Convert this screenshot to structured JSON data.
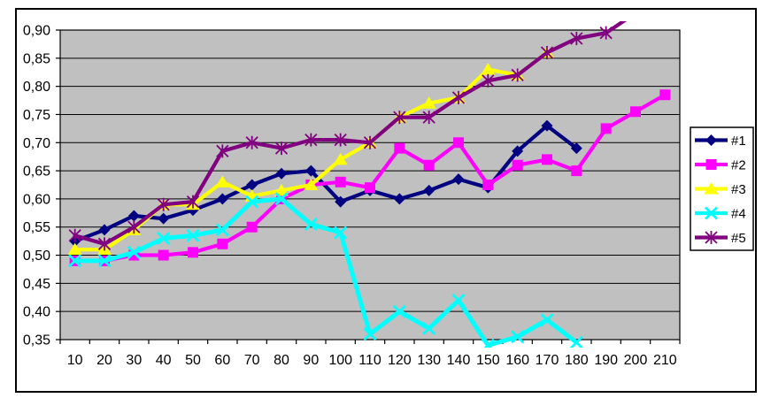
{
  "window": {
    "background_color": "#FFFFFF",
    "frame_border_color": "#000000"
  },
  "chart_data": {
    "type": "line",
    "title": "",
    "xlabel": "",
    "ylabel": "",
    "plot_background_color": "#C0C0C0",
    "grid": true,
    "gridline_color": "#000000",
    "decimal_separator": ",",
    "ylim": [
      0.35,
      0.9
    ],
    "y_tick_step": 0.05,
    "y_tick_labels": [
      "0,35",
      "0,40",
      "0,45",
      "0,50",
      "0,55",
      "0,60",
      "0,65",
      "0,70",
      "0,75",
      "0,80",
      "0,85",
      "0,90"
    ],
    "x": [
      10,
      20,
      30,
      40,
      50,
      60,
      70,
      80,
      90,
      100,
      110,
      120,
      130,
      140,
      150,
      160,
      170,
      180,
      190,
      200,
      210
    ],
    "x_tick_labels": [
      "10",
      "20",
      "30",
      "40",
      "50",
      "60",
      "70",
      "80",
      "90",
      "100",
      "110",
      "120",
      "130",
      "140",
      "150",
      "160",
      "170",
      "180",
      "190",
      "200",
      "210"
    ],
    "legend_position": "right",
    "series": [
      {
        "name": "#1",
        "color": "#000080",
        "marker": "diamond",
        "values": [
          0.525,
          0.545,
          0.57,
          0.565,
          0.58,
          0.6,
          0.625,
          0.645,
          0.65,
          0.595,
          0.615,
          0.6,
          0.615,
          0.635,
          0.62,
          0.685,
          0.73,
          0.69,
          null,
          null,
          null
        ]
      },
      {
        "name": "#2",
        "color": "#FF00FF",
        "marker": "square",
        "values": [
          0.49,
          0.49,
          0.5,
          0.5,
          0.505,
          0.52,
          0.55,
          0.6,
          0.625,
          0.63,
          0.62,
          0.69,
          0.66,
          0.7,
          0.625,
          0.66,
          0.67,
          0.65,
          0.725,
          0.755,
          0.785
        ]
      },
      {
        "name": "#3",
        "color": "#FFFF00",
        "marker": "triangle",
        "values": [
          0.51,
          0.51,
          0.545,
          0.59,
          0.59,
          0.63,
          0.605,
          0.615,
          0.625,
          0.67,
          0.7,
          0.745,
          0.77,
          0.78,
          0.83,
          0.82,
          0.86,
          null,
          null,
          null,
          null
        ]
      },
      {
        "name": "#4",
        "color": "#00FFFF",
        "marker": "x",
        "values": [
          0.49,
          0.49,
          0.505,
          0.53,
          0.535,
          0.545,
          0.595,
          0.6,
          0.555,
          0.54,
          0.36,
          0.4,
          0.37,
          0.42,
          0.34,
          0.355,
          0.385,
          0.345,
          null,
          null,
          null
        ]
      },
      {
        "name": "#5",
        "color": "#800080",
        "marker": "star",
        "values": [
          0.535,
          0.52,
          0.55,
          0.59,
          0.595,
          0.685,
          0.7,
          0.69,
          0.705,
          0.705,
          0.7,
          0.745,
          0.745,
          0.78,
          0.81,
          0.82,
          0.86,
          0.885,
          0.895,
          0.93,
          null
        ]
      }
    ],
    "legend_labels": [
      "#1",
      "#2",
      "#3",
      "#4",
      "#5"
    ]
  }
}
